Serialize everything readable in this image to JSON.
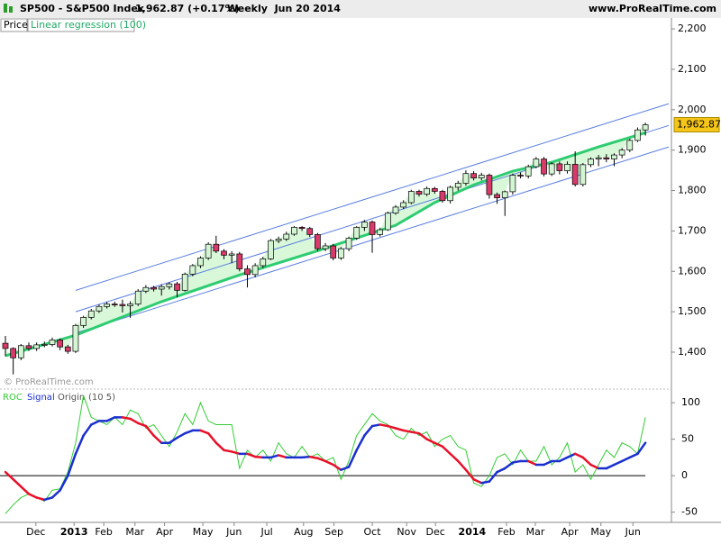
{
  "header": {
    "symbol": "SP500 - S&P500 Index",
    "quote": "1,962.87 (+0.17%)",
    "period": "Weekly  Jun 20 2014",
    "site": "www.ProRealTime.com",
    "watermark": "© ProRealTime.com"
  },
  "chart_data": [
    {
      "type": "candlestick",
      "legend": [
        "Price",
        "Linear regression (100)"
      ],
      "up_color": "#d4f5d4",
      "down_color": "#d83a6a",
      "line_color": "#2ecc71",
      "channel_color": "#5b7fe0",
      "fill_color": "#d9f7d9",
      "ylim": [
        1313,
        2227
      ],
      "yticks": [
        {
          "value": 1400,
          "label": "1,400"
        },
        {
          "value": 1500,
          "label": "1,500"
        },
        {
          "value": 1600,
          "label": "1,600"
        },
        {
          "value": 1700,
          "label": "1,700"
        },
        {
          "value": 1800,
          "label": "1,800"
        },
        {
          "value": 1900,
          "label": "1,900"
        },
        {
          "value": 2000,
          "label": "2,000"
        },
        {
          "value": 2100,
          "label": "2,100"
        },
        {
          "value": 2200,
          "label": "2,200"
        }
      ],
      "last_label": "1,962.87",
      "open": [
        1422,
        1409,
        1386,
        1416,
        1409,
        1418,
        1419,
        1430,
        1413,
        1402,
        1466,
        1486,
        1502,
        1513,
        1519,
        1518,
        1515,
        1519,
        1551,
        1560,
        1556,
        1562,
        1569,
        1553,
        1593,
        1614,
        1633,
        1667,
        1650,
        1640,
        1643,
        1606,
        1592,
        1614,
        1631,
        1676,
        1680,
        1692,
        1709,
        1706,
        1691,
        1656,
        1663,
        1633,
        1656,
        1682,
        1709,
        1722,
        1691,
        1703,
        1744,
        1759,
        1770,
        1798,
        1791,
        1805,
        1798,
        1775,
        1808,
        1818,
        1842,
        1831,
        1838,
        1790,
        1782,
        1797,
        1838,
        1836,
        1859,
        1878,
        1841,
        1866,
        1849,
        1865,
        1815,
        1864,
        1878,
        1881,
        1878,
        1888,
        1900,
        1924,
        1950
      ],
      "close": [
        1409,
        1386,
        1416,
        1409,
        1418,
        1419,
        1430,
        1413,
        1402,
        1466,
        1486,
        1502,
        1513,
        1519,
        1518,
        1515,
        1519,
        1551,
        1560,
        1556,
        1562,
        1569,
        1553,
        1593,
        1614,
        1633,
        1667,
        1650,
        1640,
        1643,
        1606,
        1592,
        1614,
        1631,
        1676,
        1680,
        1692,
        1709,
        1706,
        1691,
        1656,
        1663,
        1633,
        1656,
        1682,
        1709,
        1722,
        1691,
        1703,
        1744,
        1759,
        1770,
        1798,
        1791,
        1805,
        1798,
        1775,
        1808,
        1818,
        1842,
        1831,
        1838,
        1790,
        1782,
        1797,
        1838,
        1836,
        1859,
        1878,
        1841,
        1866,
        1849,
        1865,
        1815,
        1864,
        1878,
        1881,
        1878,
        1888,
        1900,
        1924,
        1950,
        1962.87
      ],
      "high": [
        1440,
        1412,
        1420,
        1424,
        1424,
        1426,
        1436,
        1434,
        1418,
        1470,
        1490,
        1507,
        1518,
        1524,
        1525,
        1530,
        1526,
        1556,
        1566,
        1564,
        1568,
        1573,
        1574,
        1597,
        1618,
        1637,
        1672,
        1688,
        1655,
        1650,
        1648,
        1615,
        1620,
        1636,
        1680,
        1686,
        1698,
        1712,
        1712,
        1710,
        1695,
        1670,
        1668,
        1660,
        1686,
        1712,
        1727,
        1726,
        1708,
        1748,
        1764,
        1776,
        1802,
        1802,
        1810,
        1809,
        1802,
        1812,
        1824,
        1850,
        1848,
        1844,
        1842,
        1795,
        1800,
        1842,
        1845,
        1864,
        1883,
        1883,
        1870,
        1872,
        1872,
        1897,
        1868,
        1882,
        1888,
        1890,
        1892,
        1905,
        1928,
        1956,
        1968
      ],
      "low": [
        1390,
        1345,
        1380,
        1403,
        1403,
        1412,
        1414,
        1405,
        1396,
        1398,
        1460,
        1481,
        1497,
        1508,
        1512,
        1498,
        1485,
        1514,
        1546,
        1550,
        1540,
        1555,
        1536,
        1550,
        1588,
        1608,
        1628,
        1645,
        1630,
        1620,
        1600,
        1560,
        1585,
        1608,
        1628,
        1670,
        1675,
        1688,
        1700,
        1685,
        1650,
        1650,
        1627,
        1628,
        1650,
        1678,
        1700,
        1646,
        1686,
        1700,
        1740,
        1754,
        1766,
        1785,
        1786,
        1792,
        1770,
        1768,
        1800,
        1812,
        1825,
        1825,
        1780,
        1767,
        1737,
        1790,
        1830,
        1830,
        1855,
        1835,
        1836,
        1840,
        1842,
        1810,
        1810,
        1858,
        1860,
        1870,
        1860,
        1880,
        1895,
        1920,
        1936
      ],
      "regression": {
        "x": [
          0,
          9,
          20,
          30,
          40,
          50,
          55,
          60,
          65,
          70,
          76,
          82
        ],
        "values": [
          1391,
          1442,
          1525,
          1591,
          1651,
          1714,
          1770,
          1814,
          1848,
          1870,
          1908,
          1943
        ]
      },
      "channel": {
        "x": [
          9,
          85
        ],
        "upper": [
          1553,
          2015
        ],
        "mid": [
          1500,
          1961
        ],
        "lower": [
          1447,
          1908
        ]
      },
      "xticks": [
        {
          "value": 3.9,
          "label": "Dec"
        },
        {
          "value": 8.8,
          "label": "2013"
        },
        {
          "value": 12.6,
          "label": "Feb"
        },
        {
          "value": 16.6,
          "label": "Mar"
        },
        {
          "value": 20.4,
          "label": "Apr"
        },
        {
          "value": 25.3,
          "label": "May"
        },
        {
          "value": 29.3,
          "label": "Jun"
        },
        {
          "value": 33.5,
          "label": "Jul"
        },
        {
          "value": 38.2,
          "label": "Aug"
        },
        {
          "value": 42.1,
          "label": "Sep"
        },
        {
          "value": 47,
          "label": "Oct"
        },
        {
          "value": 51.4,
          "label": "Nov"
        },
        {
          "value": 55.1,
          "label": "Dec"
        },
        {
          "value": 59.8,
          "label": "2014"
        },
        {
          "value": 64.2,
          "label": "Feb"
        },
        {
          "value": 67.9,
          "label": "Mar"
        },
        {
          "value": 72.3,
          "label": "Apr"
        },
        {
          "value": 76.3,
          "label": "May"
        },
        {
          "value": 80.4,
          "label": "Jun"
        }
      ]
    },
    {
      "type": "line",
      "legend": [
        "ROC",
        "Signal",
        "Origin",
        "(10 5)"
      ],
      "ylim": [
        -64,
        115
      ],
      "yticks": [
        -50,
        0,
        50,
        100
      ],
      "series": [
        {
          "name": "ROC",
          "color": "#33cc33",
          "values": [
            -52,
            -40,
            -30,
            -25,
            -30,
            -35,
            -20,
            -18,
            5,
            45,
            110,
            80,
            75,
            70,
            80,
            70,
            90,
            85,
            65,
            70,
            55,
            40,
            60,
            85,
            70,
            100,
            75,
            70,
            70,
            70,
            10,
            35,
            25,
            35,
            20,
            45,
            30,
            25,
            40,
            25,
            30,
            20,
            25,
            -5,
            20,
            55,
            70,
            85,
            75,
            70,
            55,
            50,
            65,
            55,
            60,
            40,
            50,
            55,
            40,
            35,
            -10,
            -15,
            0,
            25,
            30,
            15,
            35,
            20,
            20,
            40,
            15,
            25,
            45,
            5,
            15,
            -5,
            15,
            35,
            25,
            45,
            40,
            30,
            80
          ]
        },
        {
          "name": "Signal",
          "color": "#e8102a",
          "up_color": "#1a2fd0",
          "values": [
            5,
            -5,
            -15,
            -25,
            -30,
            -33,
            -30,
            -20,
            0,
            30,
            55,
            70,
            75,
            75,
            80,
            80,
            78,
            72,
            68,
            55,
            45,
            45,
            52,
            58,
            62,
            62,
            58,
            45,
            35,
            33,
            30,
            30,
            26,
            25,
            25,
            28,
            25,
            25,
            25,
            26,
            24,
            20,
            15,
            8,
            12,
            35,
            55,
            68,
            70,
            68,
            65,
            62,
            60,
            58,
            50,
            45,
            40,
            30,
            20,
            8,
            -5,
            -10,
            -8,
            5,
            10,
            18,
            20,
            20,
            15,
            15,
            20,
            20,
            25,
            30,
            25,
            15,
            10,
            10,
            15,
            20,
            25,
            30,
            45
          ]
        }
      ]
    }
  ]
}
